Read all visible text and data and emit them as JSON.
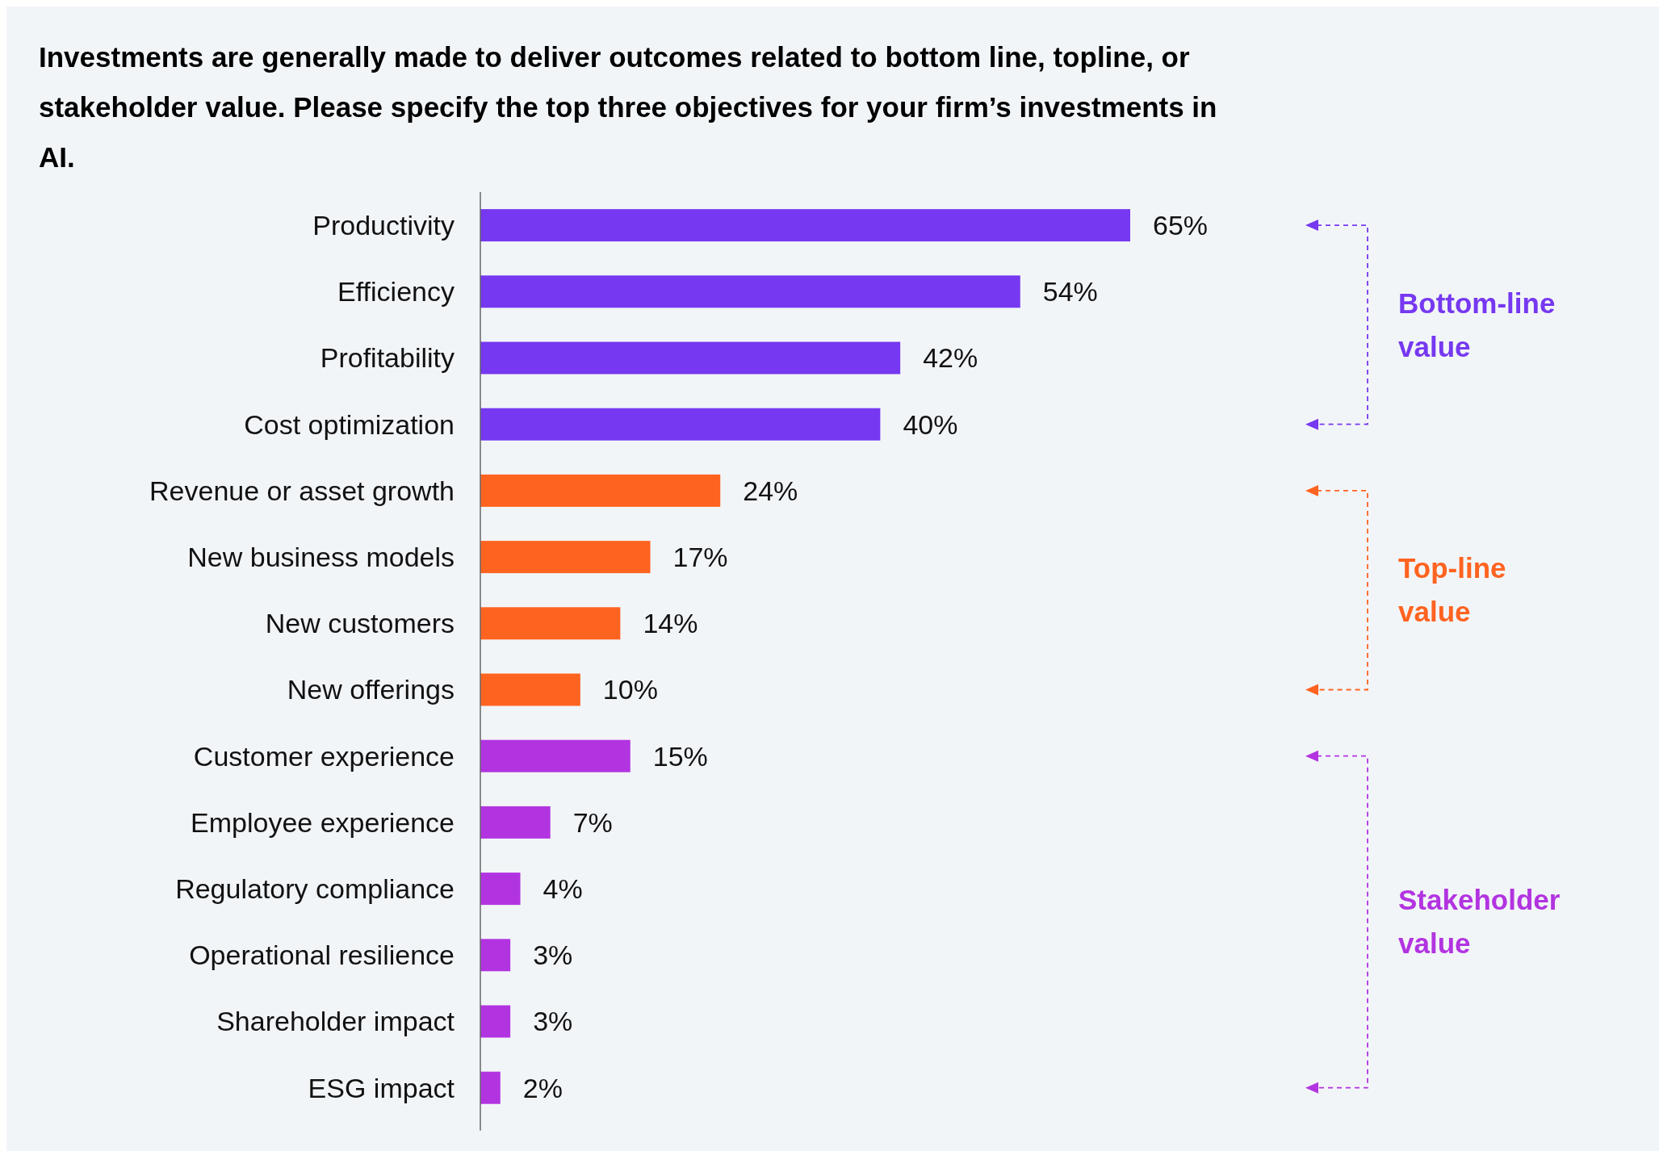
{
  "chart_data": {
    "type": "bar",
    "orientation": "horizontal",
    "title": "Investments are generally made to deliver outcomes related to bottom line, topline, or stakeholder value. Please specify the top three objectives for your firm’s investments in AI.",
    "categories": [
      "Productivity",
      "Efficiency",
      "Profitability",
      "Cost optimization",
      "Revenue or asset growth",
      "New business models",
      "New customers",
      "New offerings",
      "Customer experience",
      "Employee experience",
      "Regulatory compliance",
      "Operational resilience",
      "Shareholder impact",
      "ESG impact"
    ],
    "values": [
      65,
      54,
      42,
      40,
      24,
      17,
      14,
      10,
      15,
      7,
      4,
      3,
      3,
      2
    ],
    "colors": [
      "#7638f0",
      "#7638f0",
      "#7638f0",
      "#7638f0",
      "#ff6320",
      "#ff6320",
      "#ff6320",
      "#ff6320",
      "#b234e0",
      "#b234e0",
      "#b234e0",
      "#b234e0",
      "#b234e0",
      "#b234e0"
    ],
    "value_labels": [
      "65%",
      "54%",
      "42%",
      "40%",
      "24%",
      "17%",
      "14%",
      "10%",
      "15%",
      "7%",
      "4%",
      "3%",
      "3%",
      "2%"
    ],
    "annotations": [
      "Bottom-line value",
      "Top-line value",
      "Stakeholder value"
    ]
  }
}
